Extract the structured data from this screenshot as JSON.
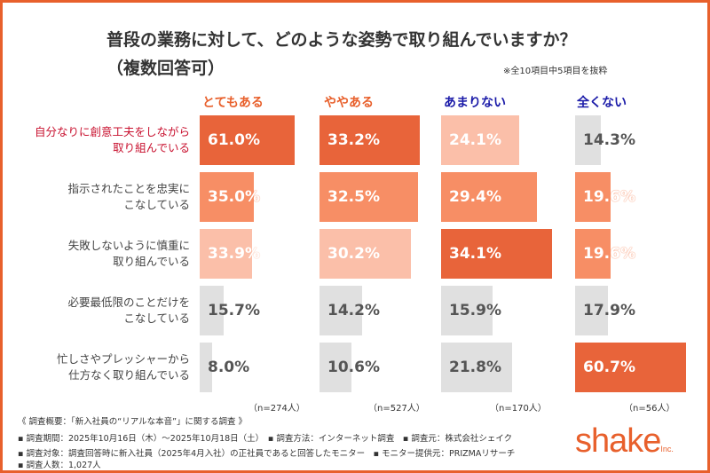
{
  "chart_data": {
    "type": "bar",
    "title": "普段の業務に対して、どのような姿勢で取り組んでいますか？",
    "subtitle": "（複数回答可）",
    "note": "※全10項目中5項目を抜粋",
    "columns": [
      {
        "label": "とてもある",
        "color": "#e8602c",
        "n": "（n=274人）"
      },
      {
        "label": "ややある",
        "color": "#e8602c",
        "n": "（n=527人）"
      },
      {
        "label": "あまりない",
        "color": "#1a1aa8",
        "n": "（n=170人）"
      },
      {
        "label": "全くない",
        "color": "#1a1aa8",
        "n": "（n=56人）"
      }
    ],
    "categories": [
      {
        "line1": "自分なりに創意工夫をしながら",
        "line2": "取り組んでいる",
        "highlight": true
      },
      {
        "line1": "指示されたことを忠実に",
        "line2": "こなしている",
        "highlight": false
      },
      {
        "line1": "失敗しないように慎重に",
        "line2": "取り組んでいる",
        "highlight": false
      },
      {
        "line1": "必要最低限のことだけを",
        "line2": "こなしている",
        "highlight": false
      },
      {
        "line1": "忙しさやプレッシャーから",
        "line2": "仕方なく取り組んでいる",
        "highlight": false
      }
    ],
    "values": [
      [
        61.0,
        33.2,
        24.1,
        14.3
      ],
      [
        35.0,
        32.5,
        29.4,
        19.6
      ],
      [
        33.9,
        30.2,
        34.1,
        19.6
      ],
      [
        15.7,
        14.2,
        15.9,
        17.9
      ],
      [
        8.0,
        10.6,
        21.8,
        60.7
      ]
    ],
    "labels": [
      [
        "61.0%",
        "33.2%",
        "24.1%",
        "14.3%"
      ],
      [
        "35.0%",
        "32.5%",
        "29.4%",
        "19.6%"
      ],
      [
        "33.9%",
        "30.2%",
        "34.1%",
        "19.6%"
      ],
      [
        "15.7%",
        "14.2%",
        "15.9%",
        "17.9%"
      ],
      [
        "8.0%",
        "10.6%",
        "21.8%",
        "60.7%"
      ]
    ],
    "rank_colors": {
      "first": "#e8643a",
      "second": "#f78e65",
      "third": "#fbbfa9",
      "other": "#e0e0e0"
    },
    "highlight_color": "#c8102e"
  },
  "footer": {
    "overview": "《 調査概要：「新入社員の“リアルな本音”」に関する調査 》",
    "line1": "▪ 調査期間：2025年10月16日（木）～2025年10月18日（土）　▪ 調査方法：インターネット調査　▪ 調査元：株式会社シェイク",
    "line2": "▪ 調査対象：調査回答時に新入社員（2025年4月入社）の正社員であると回答したモニター　▪ モニター提供元：PRIZMAリサーチ",
    "line3": "▪ 調査人数：1,027人"
  },
  "logo": {
    "text": "shake",
    "suffix": "Inc."
  }
}
